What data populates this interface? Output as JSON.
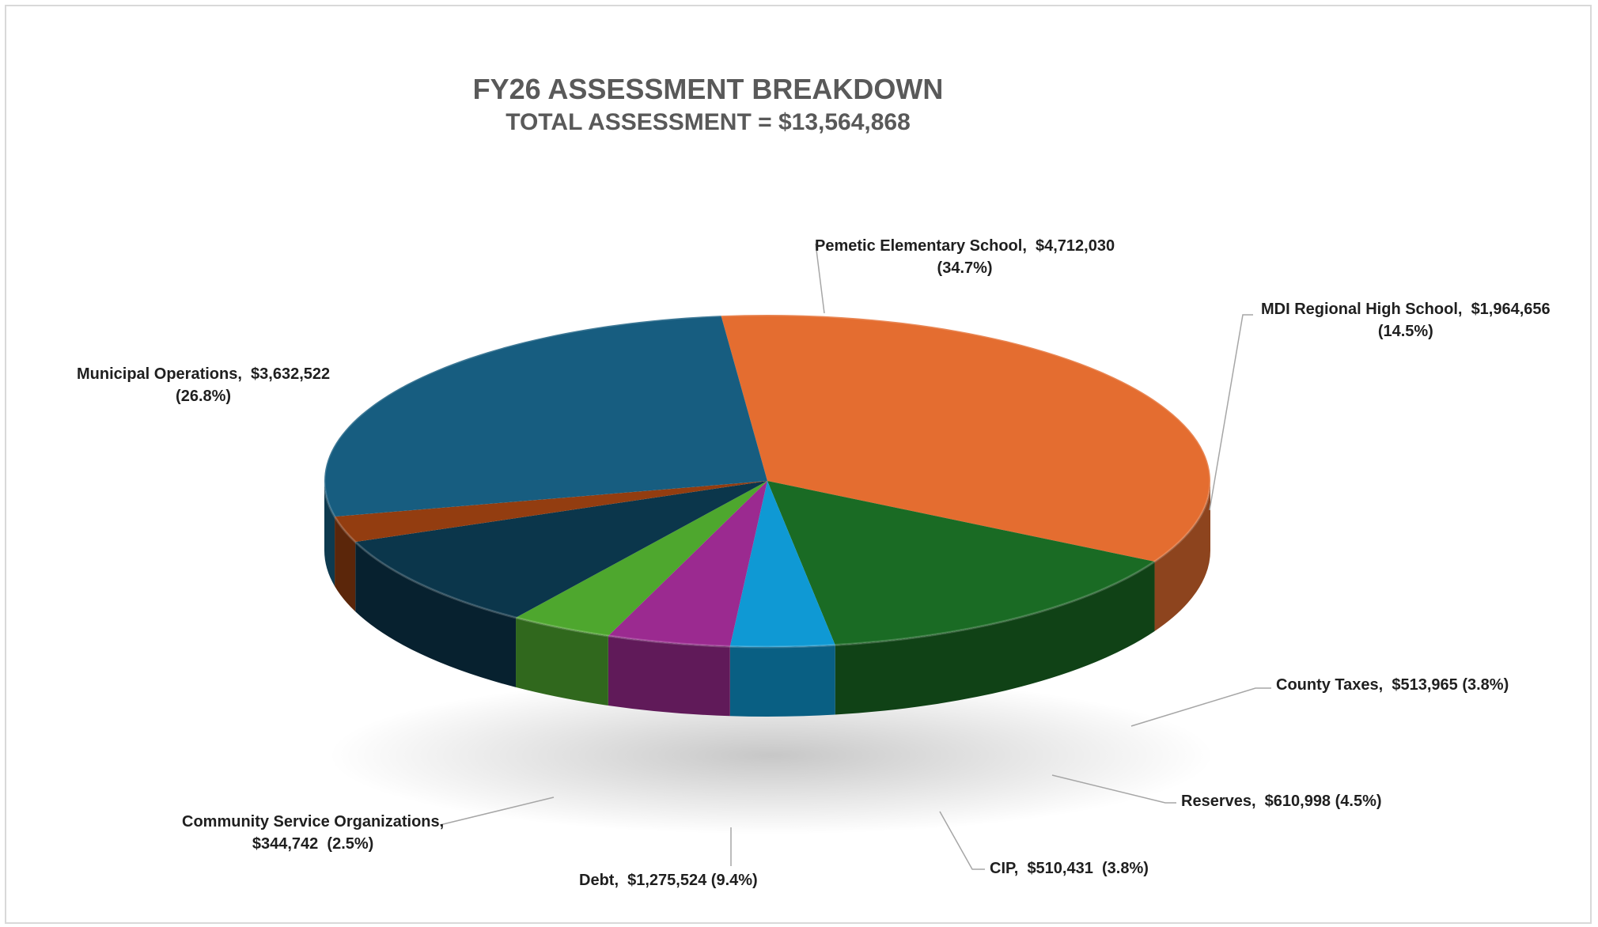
{
  "chart_data": {
    "type": "pie",
    "title": "FY26 ASSESSMENT BREAKDOWN",
    "subtitle": "TOTAL ASSESSMENT = $13,564,868",
    "legend": "none",
    "slices": [
      {
        "name": "Pemetic Elementary School",
        "value": 4712030,
        "amount": "$4,712,030",
        "percent": "(34.7%)",
        "color": "#e46d30"
      },
      {
        "name": "MDI Regional High School",
        "value": 1964656,
        "amount": "$1,964,656",
        "percent": "(14.5%)",
        "color": "#1a6b24"
      },
      {
        "name": "County Taxes",
        "value": 513965,
        "amount": "$513,965",
        "percent": "(3.8%)",
        "color": "#0f99d4"
      },
      {
        "name": "Reserves",
        "value": 610998,
        "amount": "$610,998",
        "percent": "(4.5%)",
        "color": "#9b2a90"
      },
      {
        "name": "CIP",
        "value": 510431,
        "amount": "$510,431",
        "percent": "(3.8%)",
        "color": "#4ea72e"
      },
      {
        "name": "Debt",
        "value": 1275524,
        "amount": "$1,275,524",
        "percent": "(9.4%)",
        "color": "#0b364b"
      },
      {
        "name": "Community Service Organizations",
        "value": 344742,
        "amount": "$344,742",
        "percent": "(2.5%)",
        "color": "#933d10"
      },
      {
        "name": "Municipal Operations",
        "value": 3632522,
        "amount": "$3,632,522",
        "percent": "(26.8%)",
        "color": "#175d80"
      }
    ]
  }
}
